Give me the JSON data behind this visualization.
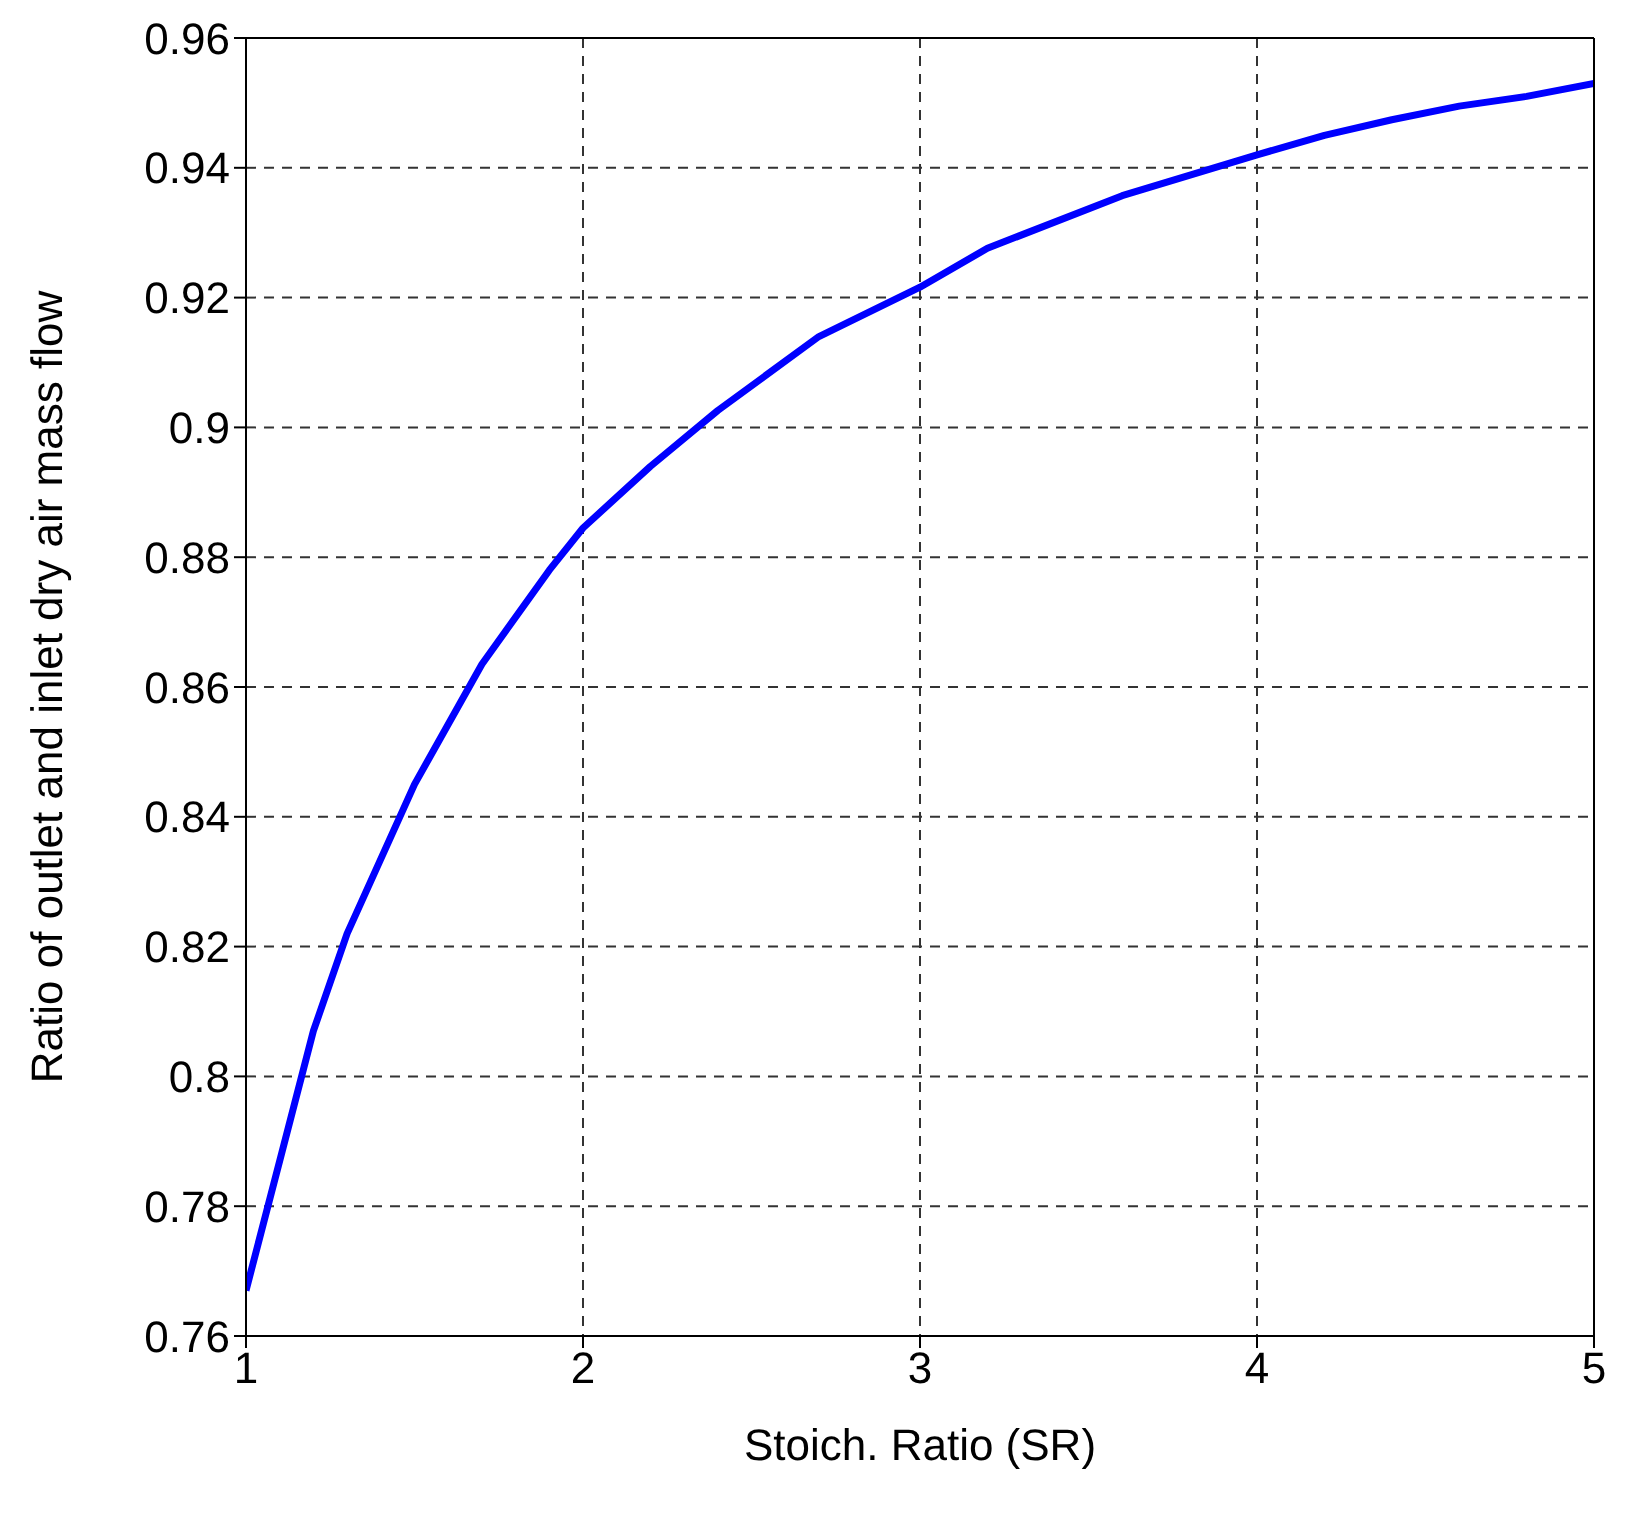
{
  "chart_data": {
    "type": "line",
    "xlabel": "Stoich. Ratio (SR)",
    "ylabel": "Ratio of outlet and inlet dry air mass flow",
    "x": [
      1,
      1.1,
      1.2,
      1.3,
      1.5,
      1.7,
      1.9,
      2,
      2.2,
      2.4,
      2.7,
      3,
      3.2,
      3.6,
      4,
      4.2,
      4.4,
      4.6,
      4.8,
      5
    ],
    "series": [
      {
        "color": "#0000ff",
        "values": [
          0.767,
          0.787,
          0.807,
          0.822,
          0.845,
          0.8635,
          0.878,
          0.8845,
          0.894,
          0.9026,
          0.914,
          0.9216,
          0.9276,
          0.9357,
          0.942,
          0.945,
          0.9474,
          0.9495,
          0.951,
          0.953
        ]
      }
    ],
    "xlim": [
      1,
      5
    ],
    "xticks": [
      1,
      2,
      3,
      4,
      5
    ],
    "ylim": [
      0.76,
      0.96
    ],
    "yticks": [
      0.76,
      0.78,
      0.8,
      0.82,
      0.84,
      0.86,
      0.88,
      0.9,
      0.92,
      0.94,
      0.96
    ],
    "grid": true,
    "marker": "none",
    "line_style": "solid"
  }
}
